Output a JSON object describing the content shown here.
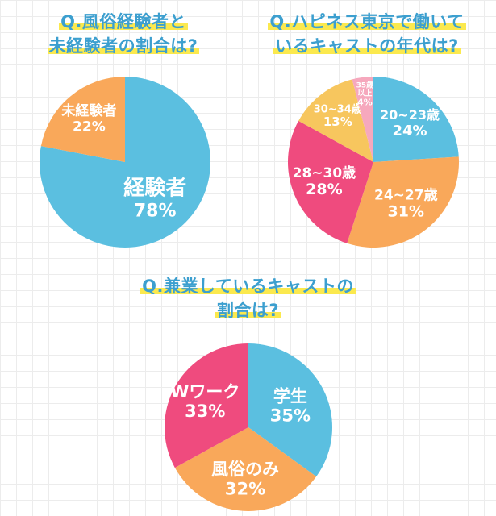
{
  "charts": [
    {
      "title_lines": [
        "Q.風俗経験者と",
        "未経験者の割合は?"
      ],
      "type": "pie",
      "slices": [
        {
          "label": "経験者",
          "value": 78,
          "value_text": "78%",
          "color": "#5bbfe0"
        },
        {
          "label": "未経験者",
          "value": 22,
          "value_text": "22%",
          "color": "#f9a85a"
        }
      ]
    },
    {
      "title_lines": [
        "Q.ハピネス東京で働いて",
        "いるキャストの年代は?"
      ],
      "type": "pie",
      "slices": [
        {
          "label": "20~23歳",
          "value": 24,
          "value_text": "24%",
          "color": "#5bbfe0"
        },
        {
          "label": "24~27歳",
          "value": 31,
          "value_text": "31%",
          "color": "#f9a85a"
        },
        {
          "label": "28~30歳",
          "value": 28,
          "value_text": "28%",
          "color": "#ef4b7e"
        },
        {
          "label": "30~34歳",
          "value": 13,
          "value_text": "13%",
          "color": "#f7c65e"
        },
        {
          "label_lines": [
            "35歳",
            "以上"
          ],
          "value": 4,
          "value_text": "4%",
          "color": "#f6a8bd"
        }
      ]
    },
    {
      "title_lines": [
        "Q.兼業しているキャストの",
        "割合は?"
      ],
      "type": "pie",
      "slices": [
        {
          "label": "学生",
          "value": 35,
          "value_text": "35%",
          "color": "#5bbfe0"
        },
        {
          "label": "風俗のみ",
          "value": 32,
          "value_text": "32%",
          "color": "#f9a85a"
        },
        {
          "label": "Wワーク",
          "value": 33,
          "value_text": "33%",
          "color": "#ef4b7e"
        }
      ]
    }
  ],
  "chart_data": [
    {
      "type": "pie",
      "title": "Q.風俗経験者と未経験者の割合は?",
      "categories": [
        "経験者",
        "未経験者"
      ],
      "values": [
        78,
        22
      ]
    },
    {
      "type": "pie",
      "title": "Q.ハピネス東京で働いているキャストの年代は?",
      "categories": [
        "20~23歳",
        "24~27歳",
        "28~30歳",
        "30~34歳",
        "35歳以上"
      ],
      "values": [
        24,
        31,
        28,
        13,
        4
      ]
    },
    {
      "type": "pie",
      "title": "Q.兼業しているキャストの割合は?",
      "categories": [
        "学生",
        "風俗のみ",
        "Wワーク"
      ],
      "values": [
        35,
        32,
        33
      ]
    }
  ]
}
